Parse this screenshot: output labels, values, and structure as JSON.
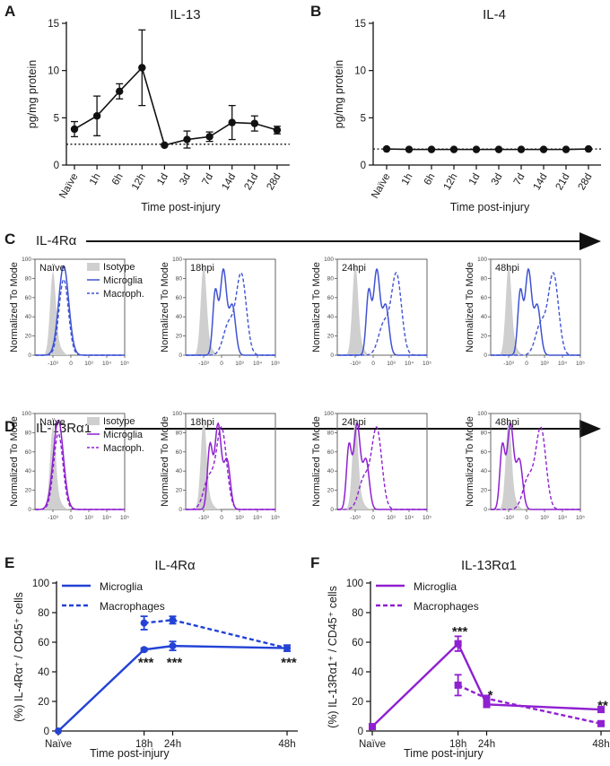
{
  "colors": {
    "blue": "#2342d6",
    "hist_blue": "#3f53d2",
    "purple": "#8f20d0",
    "black": "#111111",
    "isotype_fill": "#cfcfcf"
  },
  "chart_data": [
    {
      "id": "A",
      "letter": "A",
      "type": "line",
      "title": "IL-13",
      "xlabel": "Time post-injury",
      "ylabel": "pg/mg protein",
      "categories": [
        "Naïve",
        "1h",
        "6h",
        "12h",
        "1d",
        "3d",
        "7d",
        "14d",
        "21d",
        "28d"
      ],
      "values": [
        3.8,
        5.2,
        7.8,
        10.3,
        2.1,
        2.7,
        3.0,
        4.5,
        4.4,
        3.7
      ],
      "errors": [
        0.8,
        2.1,
        0.8,
        4.0,
        0.1,
        0.9,
        0.5,
        1.8,
        0.8,
        0.4
      ],
      "baseline": 2.2,
      "ylim": [
        0,
        15
      ],
      "yticks": [
        0,
        5,
        10,
        15
      ]
    },
    {
      "id": "B",
      "letter": "B",
      "type": "line",
      "title": "IL-4",
      "xlabel": "Time post-injury",
      "ylabel": "pg/mg protein",
      "categories": [
        "Naïve",
        "1h",
        "6h",
        "12h",
        "1d",
        "3d",
        "7d",
        "14d",
        "21d",
        "28d"
      ],
      "values": [
        1.7,
        1.65,
        1.65,
        1.65,
        1.65,
        1.65,
        1.65,
        1.65,
        1.65,
        1.7
      ],
      "errors": [
        0.05,
        0.05,
        0.05,
        0.05,
        0.05,
        0.05,
        0.05,
        0.05,
        0.05,
        0.05
      ],
      "baseline": 1.7,
      "ylim": [
        0,
        15
      ],
      "yticks": [
        0,
        5,
        10,
        15
      ]
    },
    {
      "id": "C",
      "letter": "C",
      "type": "histogram-row",
      "title": "IL-4Rα",
      "ylabel": "Normalized To Mode",
      "timepoints": [
        "Naïve",
        "18hpi",
        "24hpi",
        "48hpi"
      ],
      "legend": [
        "Isotype",
        "Microglia",
        "Macroph."
      ],
      "x_ticks": [
        "-10³",
        "0",
        "10³",
        "10⁴",
        "10⁵"
      ],
      "y_ticks": [
        "0",
        "20",
        "40",
        "60",
        "80",
        "100"
      ],
      "peaks_log_units": {
        "isotype": [
          0.0,
          0.0,
          0.0,
          0.0
        ],
        "microglia": [
          0.6,
          1.1,
          1.2,
          1.1
        ],
        "macrophage": [
          0.6,
          2.1,
          2.3,
          2.5
        ]
      }
    },
    {
      "id": "D",
      "letter": "D",
      "type": "histogram-row",
      "title": "IL-13Rα1",
      "ylabel": "Normalized To Mode",
      "timepoints": [
        "Naïve",
        "18hpi",
        "24hpi",
        "48hpi"
      ],
      "legend": [
        "Isotype",
        "Microglia",
        "Macroph."
      ],
      "x_ticks": [
        "-10³",
        "0",
        "10³",
        "10⁴",
        "10⁵"
      ],
      "y_ticks": [
        "0",
        "20",
        "40",
        "60",
        "80",
        "100"
      ],
      "peaks_log_units": {
        "isotype": [
          0.0,
          0.0,
          0.0,
          0.0
        ],
        "microglia": [
          0.3,
          0.8,
          0.1,
          0.1
        ],
        "macrophage": [
          0.3,
          1.0,
          1.2,
          1.8
        ]
      }
    },
    {
      "id": "E",
      "letter": "E",
      "type": "line",
      "title": "IL-4Rα",
      "xlabel": "Time post-injury",
      "ylabel": "(%) IL-4Rα⁺ / CD45⁺ cells",
      "x_tick_labels": [
        "Naïve",
        "18h",
        "24h",
        "48h"
      ],
      "x_values": [
        0,
        18,
        24,
        48
      ],
      "ylim": [
        0,
        100
      ],
      "yticks": [
        0,
        20,
        40,
        60,
        80,
        100
      ],
      "series": [
        {
          "name": "Microglia",
          "style": "solid",
          "x": [
            0,
            18,
            24,
            48
          ],
          "values": [
            0,
            55,
            57.5,
            56
          ],
          "errors": [
            0,
            1.0,
            3.0,
            2.0
          ]
        },
        {
          "name": "Macrophages",
          "style": "dashed",
          "x": [
            18,
            24,
            48
          ],
          "values": [
            73,
            75,
            56
          ],
          "errors": [
            4.5,
            2.5,
            2.0
          ]
        }
      ],
      "annotations": [
        {
          "x": 18,
          "y": 47,
          "text": "***"
        },
        {
          "x": 24,
          "y": 47,
          "text": "***"
        },
        {
          "x": 48,
          "y": 47,
          "text": "***"
        }
      ]
    },
    {
      "id": "F",
      "letter": "F",
      "type": "line",
      "title": "IL-13Rα1",
      "xlabel": "Time post-injury",
      "ylabel": "(%) IL-13Rα1⁺ / CD45⁺ cells",
      "x_tick_labels": [
        "Naïve",
        "18h",
        "24h",
        "48h"
      ],
      "x_values": [
        0,
        18,
        24,
        48
      ],
      "ylim": [
        0,
        100
      ],
      "yticks": [
        0,
        20,
        40,
        60,
        80,
        100
      ],
      "series": [
        {
          "name": "Microglia",
          "style": "solid",
          "x": [
            0,
            18,
            24,
            48
          ],
          "values": [
            3,
            59,
            18,
            14.5
          ],
          "errors": [
            0,
            5.0,
            2.0,
            1.5
          ]
        },
        {
          "name": "Macrophages",
          "style": "dashed",
          "x": [
            18,
            24,
            48
          ],
          "values": [
            31,
            22,
            5
          ],
          "errors": [
            7.0,
            2.0,
            1.0
          ]
        }
      ],
      "annotations": [
        {
          "x": 18,
          "y": 68,
          "text": "***"
        },
        {
          "x": 24,
          "y": 25,
          "text": "*"
        },
        {
          "x": 48,
          "y": 18,
          "text": "**"
        }
      ]
    }
  ]
}
